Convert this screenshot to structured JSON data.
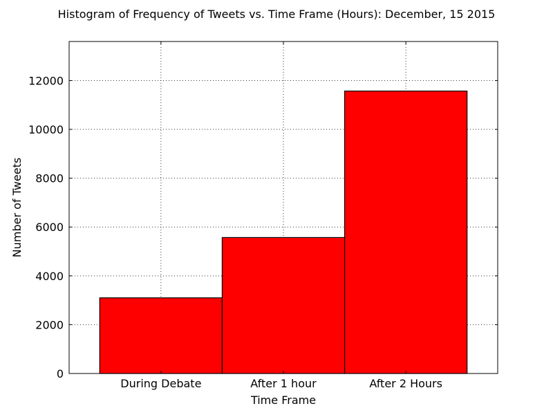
{
  "chart_data": {
    "type": "bar",
    "title": "Histogram of Frequency of Tweets vs. Time Frame (Hours): December, 15 2015",
    "xlabel": "Time Frame",
    "ylabel": "Number of Tweets",
    "categories": [
      "During Debate",
      "After 1 hour",
      "After 2 Hours"
    ],
    "values": [
      3100,
      5570,
      11570
    ],
    "ylim": [
      0,
      13600
    ],
    "yticks": [
      0,
      2000,
      4000,
      6000,
      8000,
      10000,
      12000
    ],
    "ytick_labels": [
      "0",
      "2000",
      "4000",
      "6000",
      "8000",
      "10000",
      "12000"
    ],
    "grid": true,
    "bar_color": "#ff0000",
    "edge_color": "#000000"
  }
}
